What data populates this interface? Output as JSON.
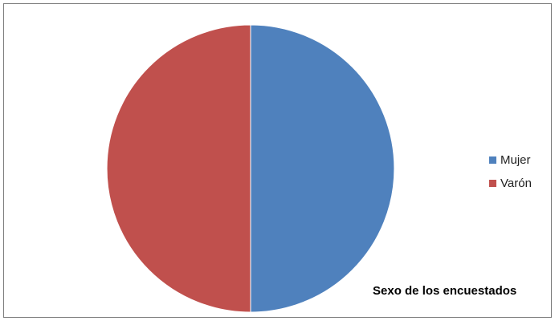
{
  "chart_data": {
    "type": "pie",
    "title": "Sexo de los encuestados",
    "categories": [
      "Mujer",
      "Varón"
    ],
    "values": [
      50,
      50
    ],
    "colors": [
      "#4f81bd",
      "#c0504d"
    ],
    "legend_position": "right"
  }
}
